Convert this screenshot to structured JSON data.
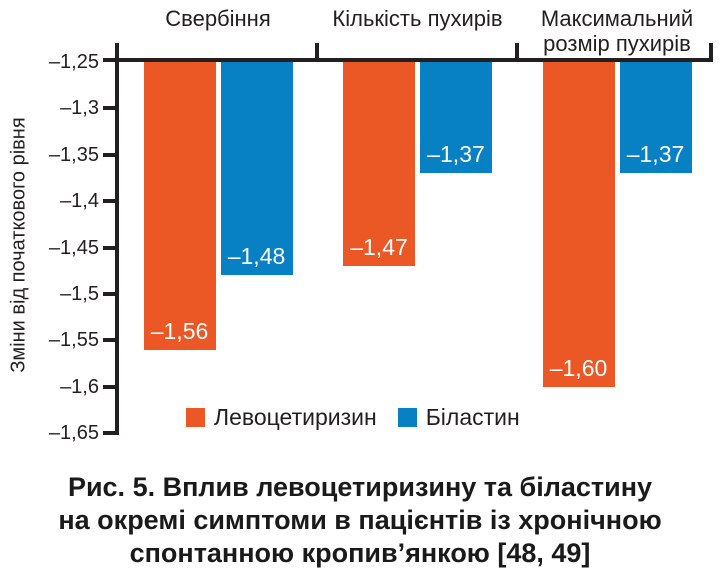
{
  "chart_data": {
    "type": "bar",
    "categories": [
      "Свербіння",
      "Кількість пухирів",
      "Максимальний розмір пухирів"
    ],
    "series": [
      {
        "key": "levocetirizine",
        "name": "Левоцетиризин",
        "color": "#EB5826",
        "values": [
          -1.56,
          -1.47,
          -1.6
        ],
        "value_labels": [
          "–1,56",
          "–1,47",
          "–1,60"
        ]
      },
      {
        "key": "bilastine",
        "name": "Біластин",
        "color": "#0881C4",
        "values": [
          -1.48,
          -1.37,
          -1.37
        ],
        "value_labels": [
          "–1,48",
          "–1,37",
          "–1,37"
        ]
      }
    ],
    "ylabel": "Зміни від початкового рівня",
    "yticks": [
      "–1,25",
      "–1,3",
      "–1,35",
      "–1,4",
      "–1,45",
      "–1,5",
      "–1,55",
      "–1,6",
      "–1,65"
    ],
    "ylim": [
      -1.65,
      -1.25
    ],
    "baseline": -1.25,
    "grid": false,
    "legend_position": "bottom",
    "axis_color": "#231F20",
    "value_label_color": "#FFFFFF"
  },
  "caption": {
    "lines": [
      "Рис. 5. Вплив левоцетиризину та біластину",
      "на окремі симптоми в пацієнтів із хронічною",
      "спонтанною кропив’янкою [48, 49]"
    ]
  }
}
